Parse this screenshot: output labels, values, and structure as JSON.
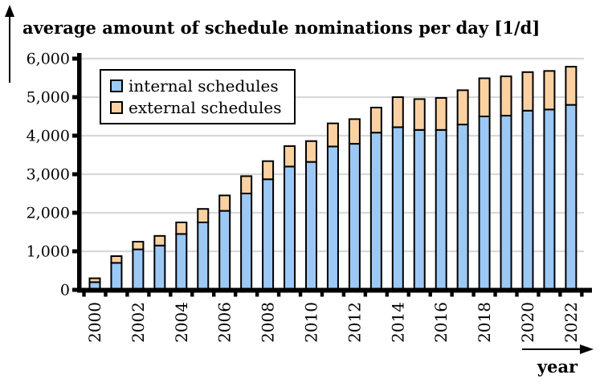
{
  "chart_data": {
    "type": "bar",
    "stacked": true,
    "title": "average amount of schedule nominations per day [1/d]",
    "xlabel": "year",
    "ylabel": "",
    "categories": [
      2000,
      2001,
      2002,
      2003,
      2004,
      2005,
      2006,
      2007,
      2008,
      2009,
      2010,
      2011,
      2012,
      2013,
      2014,
      2015,
      2016,
      2017,
      2018,
      2019,
      2020,
      2021,
      2022
    ],
    "series": [
      {
        "name": "internal schedules",
        "color": "#9CC8F5",
        "values": [
          200,
          700,
          1050,
          1150,
          1450,
          1750,
          2050,
          2500,
          2870,
          3200,
          3320,
          3720,
          3790,
          4080,
          4220,
          4150,
          4150,
          4290,
          4500,
          4520,
          4650,
          4680,
          4800
        ]
      },
      {
        "name": "external schedules",
        "color": "#FBD1A2",
        "values": [
          100,
          175,
          200,
          250,
          300,
          350,
          400,
          450,
          470,
          530,
          540,
          600,
          640,
          650,
          780,
          800,
          830,
          890,
          990,
          1020,
          1000,
          1000,
          990
        ]
      }
    ],
    "ylim": [
      0,
      6000
    ],
    "y_ticks": [
      0,
      1000,
      2000,
      3000,
      4000,
      5000,
      6000
    ],
    "y_tick_labels": [
      "0",
      "1,000",
      "2,000",
      "3,000",
      "4,000",
      "5,000",
      "6,000"
    ],
    "x_label_every": 2,
    "grid": "horizontal",
    "gridline_color": "#D9D9D9",
    "bar_outline_color": "#000000",
    "axis_color": "#000000",
    "legend_position": "top-left"
  }
}
